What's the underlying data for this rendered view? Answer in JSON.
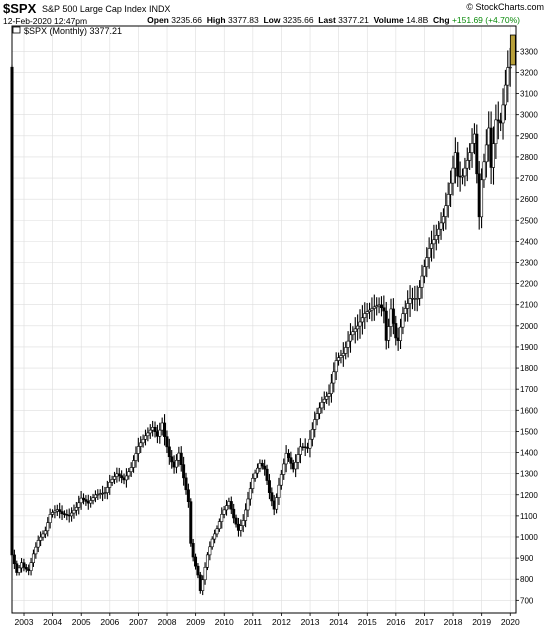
{
  "header": {
    "symbol": "$SPX",
    "name": "S&P 500 Large Cap Index",
    "exchange": "INDX",
    "datetime": "12-Feb-2020 12:47pm",
    "brand": "© StockCharts.com",
    "quote": {
      "open_label": "Open",
      "open": "3235.66",
      "high_label": "High",
      "high": "3377.83",
      "low_label": "Low",
      "low": "3235.66",
      "last_label": "Last",
      "last": "3377.21",
      "volume_label": "Volume",
      "volume": "14.8B",
      "chg_label": "Chg",
      "chg": "+151.69 (+4.70%)"
    }
  },
  "legend": "$SPX (Monthly) 3377.21",
  "colors": {
    "candle": "#000000",
    "last_bar": "#b8a03a",
    "grid": "#dddddd",
    "change_up": "#0a8a0a"
  },
  "chart_data": {
    "type": "line",
    "title": "$SPX (Monthly) 3377.21",
    "xlabel": "",
    "ylabel": "",
    "xlim": [
      2002.58,
      2020.2
    ],
    "ylim": [
      640,
      3420
    ],
    "y_ticks": [
      700,
      800,
      900,
      1000,
      1100,
      1200,
      1300,
      1400,
      1500,
      1600,
      1700,
      1800,
      1900,
      2000,
      2100,
      2200,
      2300,
      2400,
      2500,
      2600,
      2700,
      2800,
      2900,
      3000,
      3100,
      3200,
      3300
    ],
    "x_ticks": [
      "2003",
      "2004",
      "2005",
      "2006",
      "2007",
      "2008",
      "2009",
      "2010",
      "2011",
      "2012",
      "2013",
      "2014",
      "2015",
      "2016",
      "2017",
      "2018",
      "2019",
      "2020"
    ],
    "grid": true,
    "y_axis_side": "right",
    "series": [
      {
        "interval": "monthly",
        "points": [
          [
            2002.58,
            915
          ],
          [
            2002.75,
            830
          ],
          [
            2002.92,
            880
          ],
          [
            2003.0,
            855
          ],
          [
            2003.17,
            840
          ],
          [
            2003.33,
            920
          ],
          [
            2003.5,
            985
          ],
          [
            2003.75,
            1030
          ],
          [
            2003.92,
            1110
          ],
          [
            2004.17,
            1130
          ],
          [
            2004.33,
            1110
          ],
          [
            2004.58,
            1100
          ],
          [
            2004.83,
            1140
          ],
          [
            2005.0,
            1185
          ],
          [
            2005.25,
            1160
          ],
          [
            2005.5,
            1200
          ],
          [
            2005.83,
            1210
          ],
          [
            2006.0,
            1260
          ],
          [
            2006.25,
            1300
          ],
          [
            2006.5,
            1270
          ],
          [
            2006.75,
            1330
          ],
          [
            2007.0,
            1430
          ],
          [
            2007.25,
            1480
          ],
          [
            2007.5,
            1520
          ],
          [
            2007.67,
            1475
          ],
          [
            2007.83,
            1540
          ],
          [
            2007.92,
            1470
          ],
          [
            2008.08,
            1380
          ],
          [
            2008.25,
            1330
          ],
          [
            2008.42,
            1400
          ],
          [
            2008.58,
            1280
          ],
          [
            2008.75,
            1165
          ],
          [
            2008.83,
            970
          ],
          [
            2008.92,
            900
          ],
          [
            2009.08,
            820
          ],
          [
            2009.17,
            740
          ],
          [
            2009.25,
            800
          ],
          [
            2009.42,
            920
          ],
          [
            2009.58,
            990
          ],
          [
            2009.75,
            1040
          ],
          [
            2009.92,
            1110
          ],
          [
            2010.17,
            1170
          ],
          [
            2010.33,
            1090
          ],
          [
            2010.5,
            1030
          ],
          [
            2010.67,
            1080
          ],
          [
            2010.83,
            1180
          ],
          [
            2011.0,
            1280
          ],
          [
            2011.25,
            1350
          ],
          [
            2011.42,
            1320
          ],
          [
            2011.58,
            1210
          ],
          [
            2011.75,
            1130
          ],
          [
            2011.92,
            1250
          ],
          [
            2012.17,
            1400
          ],
          [
            2012.42,
            1320
          ],
          [
            2012.67,
            1430
          ],
          [
            2012.92,
            1420
          ],
          [
            2013.17,
            1560
          ],
          [
            2013.42,
            1640
          ],
          [
            2013.67,
            1680
          ],
          [
            2013.92,
            1840
          ],
          [
            2014.17,
            1870
          ],
          [
            2014.42,
            1960
          ],
          [
            2014.67,
            2000
          ],
          [
            2014.92,
            2060
          ],
          [
            2015.25,
            2090
          ],
          [
            2015.42,
            2100
          ],
          [
            2015.58,
            2070
          ],
          [
            2015.67,
            1920
          ],
          [
            2015.83,
            2080
          ],
          [
            2016.0,
            1940
          ],
          [
            2016.08,
            1930
          ],
          [
            2016.25,
            2060
          ],
          [
            2016.5,
            2130
          ],
          [
            2016.75,
            2130
          ],
          [
            2016.92,
            2240
          ],
          [
            2017.17,
            2370
          ],
          [
            2017.42,
            2430
          ],
          [
            2017.67,
            2520
          ],
          [
            2017.92,
            2680
          ],
          [
            2018.08,
            2820
          ],
          [
            2018.17,
            2700
          ],
          [
            2018.33,
            2710
          ],
          [
            2018.58,
            2820
          ],
          [
            2018.75,
            2910
          ],
          [
            2018.83,
            2720
          ],
          [
            2018.92,
            2500
          ],
          [
            2019.0,
            2700
          ],
          [
            2019.25,
            2940
          ],
          [
            2019.33,
            2750
          ],
          [
            2019.5,
            2980
          ],
          [
            2019.67,
            2960
          ],
          [
            2019.83,
            3140
          ],
          [
            2019.92,
            3230
          ],
          [
            2020.0,
            3225
          ]
        ]
      },
      {
        "interval": "current month bar",
        "open": 3235.66,
        "high": 3377.83,
        "low": 3235.66,
        "close": 3377.21
      }
    ]
  }
}
